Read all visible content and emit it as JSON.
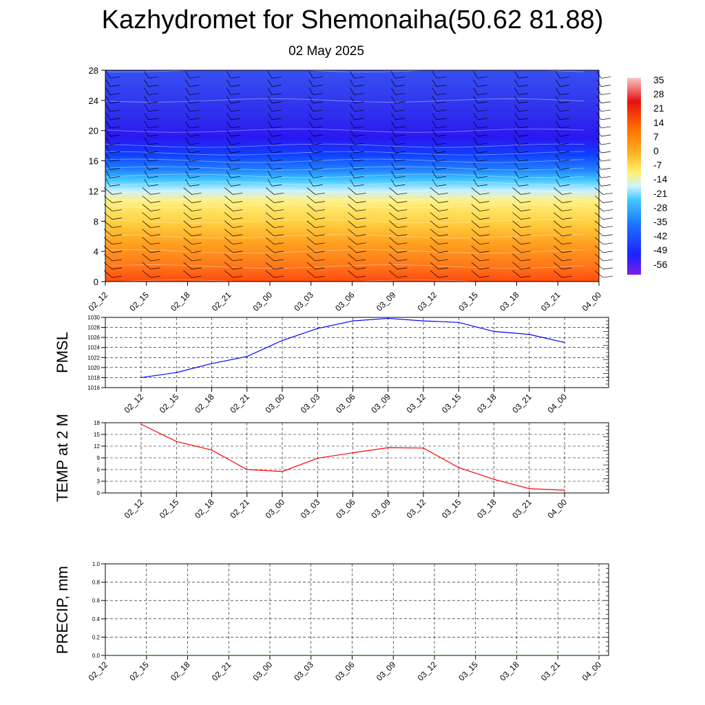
{
  "title": "Kazhydromet for Shemonaiha(50.62 81.88)",
  "subtitle": "02 May 2025",
  "chart_data": [
    {
      "type": "heatmap",
      "x_categories": [
        "02_12",
        "02_15",
        "02_18",
        "02_21",
        "03_00",
        "03_03",
        "03_06",
        "03_09",
        "03_12",
        "03_15",
        "03_18",
        "03_21",
        "04_00"
      ],
      "y_ticks": [
        "0",
        "4",
        "8",
        "12",
        "16",
        "20",
        "24",
        "28"
      ],
      "ylim": [
        0,
        28
      ],
      "levels_note": "temperature contours vs height",
      "colorbar_labels": [
        "35",
        "28",
        "21",
        "14",
        "7",
        "0",
        "-7",
        "-14",
        "-21",
        "-28",
        "-35",
        "-42",
        "-49",
        "-56"
      ],
      "temperature_by_height": {
        "heights": [
          0,
          2,
          4,
          6,
          8,
          10,
          11,
          12,
          13,
          14,
          15,
          16,
          17,
          18,
          20,
          24,
          28
        ],
        "values": [
          18,
          12,
          7,
          2,
          -3,
          -8,
          -12,
          -18,
          -24,
          -30,
          -38,
          -45,
          -52,
          -56,
          -55,
          -52,
          -50
        ]
      },
      "grid": false
    },
    {
      "type": "line",
      "ylabel": "PMSL",
      "categories": [
        "02_12",
        "02_15",
        "02_18",
        "02_21",
        "03_00",
        "03_03",
        "03_06",
        "03_09",
        "03_12",
        "03_15",
        "03_18",
        "03_21",
        "04_00"
      ],
      "values": [
        1018,
        1019,
        1020.8,
        1022.2,
        1025.4,
        1027.8,
        1029.3,
        1029.8,
        1029.3,
        1029.0,
        1027.2,
        1026.6,
        1025.0
      ],
      "y_ticks": [
        "1016",
        "1018",
        "1020",
        "1022",
        "1024",
        "1026",
        "1028",
        "1030"
      ],
      "ylim": [
        1016,
        1030
      ],
      "color": "#0000ff",
      "grid": true
    },
    {
      "type": "line",
      "ylabel": "TEMP at 2 M",
      "categories": [
        "02_12",
        "02_15",
        "02_18",
        "02_21",
        "03_00",
        "03_03",
        "03_06",
        "03_09",
        "03_12",
        "03_15",
        "03_18",
        "03_21",
        "04_00"
      ],
      "values": [
        17.6,
        13.2,
        11.0,
        6.0,
        5.5,
        8.9,
        10.3,
        11.6,
        11.5,
        6.5,
        3.5,
        1.1,
        0.7
      ],
      "y_ticks": [
        "0",
        "3",
        "6",
        "9",
        "12",
        "15",
        "18"
      ],
      "ylim": [
        0,
        18
      ],
      "color": "#ff0000",
      "grid": true
    },
    {
      "type": "line",
      "ylabel": "PRECIP, mm",
      "categories": [
        "02_12",
        "02_15",
        "02_18",
        "02_21",
        "03_00",
        "03_03",
        "03_06",
        "03_09",
        "03_12",
        "03_15",
        "03_18",
        "03_21",
        "04_00"
      ],
      "values": [
        0,
        0,
        0,
        0,
        0,
        0,
        0,
        0,
        0,
        0,
        0,
        0,
        0
      ],
      "y_ticks": [
        "0.0",
        "0.2",
        "0.4",
        "0.6",
        "0.8",
        "1.0"
      ],
      "ylim": [
        0,
        1
      ],
      "color": "#006400",
      "grid": true
    }
  ]
}
